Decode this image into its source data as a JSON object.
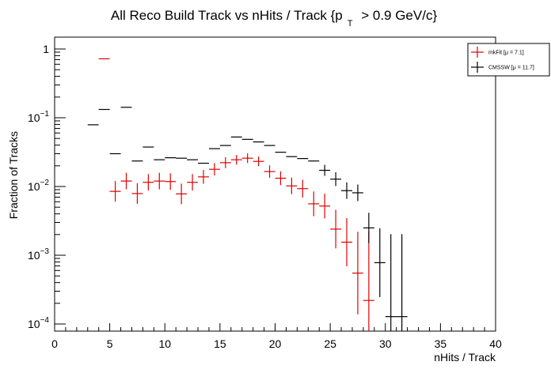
{
  "chart_data": {
    "type": "scatter",
    "title": {
      "prefix": "All Reco Build Track vs nHits / Track {p",
      "subscript": "T",
      "suffix": " > 0.9 GeV/c}"
    },
    "xlabel": "nHits / Track",
    "ylabel": "Fraction of Tracks",
    "xlim": [
      0,
      40
    ],
    "ylim": [
      7e-05,
      2.0
    ],
    "yscale": "log",
    "x_ticks": [
      "0",
      "5",
      "10",
      "15",
      "20",
      "25",
      "30",
      "35",
      "40"
    ],
    "y_ticks": [
      {
        "base": "1",
        "exp": ""
      },
      {
        "base": "10",
        "exp": "−1"
      },
      {
        "base": "10",
        "exp": "−2"
      },
      {
        "base": "10",
        "exp": "−3"
      },
      {
        "base": "10",
        "exp": "−4"
      }
    ],
    "legend_position": "top-right",
    "series": [
      {
        "name": "mkFit",
        "legend_label": "mkFit  [μ =  7.1]",
        "color": "#e00000",
        "points": [
          {
            "x": 4.5,
            "y": 0.72,
            "err": 0
          },
          {
            "x": 5.5,
            "y": 0.0085,
            "err": 0.15
          },
          {
            "x": 6.5,
            "y": 0.012,
            "err": 0.12
          },
          {
            "x": 7.5,
            "y": 0.0079,
            "err": 0.15
          },
          {
            "x": 8.5,
            "y": 0.0115,
            "err": 0.12
          },
          {
            "x": 9.5,
            "y": 0.012,
            "err": 0.12
          },
          {
            "x": 10.5,
            "y": 0.0118,
            "err": 0.12
          },
          {
            "x": 11.5,
            "y": 0.0078,
            "err": 0.15
          },
          {
            "x": 12.5,
            "y": 0.0115,
            "err": 0.12
          },
          {
            "x": 13.5,
            "y": 0.0138,
            "err": 0.1
          },
          {
            "x": 14.5,
            "y": 0.0178,
            "err": 0.09
          },
          {
            "x": 15.5,
            "y": 0.0222,
            "err": 0.08
          },
          {
            "x": 16.5,
            "y": 0.0245,
            "err": 0.07
          },
          {
            "x": 17.5,
            "y": 0.0258,
            "err": 0.07
          },
          {
            "x": 18.5,
            "y": 0.0232,
            "err": 0.07
          },
          {
            "x": 19.5,
            "y": 0.0165,
            "err": 0.09
          },
          {
            "x": 20.5,
            "y": 0.0132,
            "err": 0.1
          },
          {
            "x": 21.5,
            "y": 0.0102,
            "err": 0.12
          },
          {
            "x": 22.5,
            "y": 0.0093,
            "err": 0.13
          },
          {
            "x": 23.5,
            "y": 0.0056,
            "err": 0.18
          },
          {
            "x": 24.5,
            "y": 0.0052,
            "err": 0.18
          },
          {
            "x": 25.5,
            "y": 0.0024,
            "err": 0.28
          },
          {
            "x": 26.5,
            "y": 0.00155,
            "err": 0.35
          },
          {
            "x": 27.5,
            "y": 0.00055,
            "err": 0.6
          },
          {
            "x": 28.5,
            "y": 0.00022,
            "err": 1.0
          }
        ]
      },
      {
        "name": "CMSSW",
        "legend_label": "CMSSW  [μ = 11.7]",
        "color": "#000000",
        "points": [
          {
            "x": 3.5,
            "y": 0.079,
            "err": 0
          },
          {
            "x": 4.5,
            "y": 0.132,
            "err": 0
          },
          {
            "x": 5.5,
            "y": 0.03,
            "err": 0
          },
          {
            "x": 6.5,
            "y": 0.142,
            "err": 0
          },
          {
            "x": 7.5,
            "y": 0.0235,
            "err": 0
          },
          {
            "x": 8.5,
            "y": 0.0375,
            "err": 0
          },
          {
            "x": 9.5,
            "y": 0.0245,
            "err": 0
          },
          {
            "x": 10.5,
            "y": 0.0262,
            "err": 0
          },
          {
            "x": 11.5,
            "y": 0.0258,
            "err": 0
          },
          {
            "x": 12.5,
            "y": 0.0245,
            "err": 0
          },
          {
            "x": 13.5,
            "y": 0.0218,
            "err": 0
          },
          {
            "x": 14.5,
            "y": 0.0355,
            "err": 0
          },
          {
            "x": 15.5,
            "y": 0.0395,
            "err": 0
          },
          {
            "x": 16.5,
            "y": 0.0525,
            "err": 0
          },
          {
            "x": 17.5,
            "y": 0.0485,
            "err": 0
          },
          {
            "x": 18.5,
            "y": 0.0445,
            "err": 0
          },
          {
            "x": 19.5,
            "y": 0.0395,
            "err": 0
          },
          {
            "x": 20.5,
            "y": 0.0315,
            "err": 0
          },
          {
            "x": 21.5,
            "y": 0.0272,
            "err": 0
          },
          {
            "x": 22.5,
            "y": 0.0255,
            "err": 0
          },
          {
            "x": 23.5,
            "y": 0.0235,
            "err": 0
          },
          {
            "x": 24.5,
            "y": 0.0172,
            "err": 0.08
          },
          {
            "x": 25.5,
            "y": 0.0128,
            "err": 0.1
          },
          {
            "x": 26.5,
            "y": 0.0087,
            "err": 0.12
          },
          {
            "x": 27.5,
            "y": 0.0081,
            "err": 0.12
          },
          {
            "x": 28.5,
            "y": 0.0025,
            "err": 0.22
          },
          {
            "x": 29.5,
            "y": 0.00078,
            "err": 0.5
          },
          {
            "x": 30.5,
            "y": 0.000128,
            "err": 1.2
          },
          {
            "x": 31.5,
            "y": 0.000128,
            "err": 1.2
          }
        ]
      }
    ]
  }
}
